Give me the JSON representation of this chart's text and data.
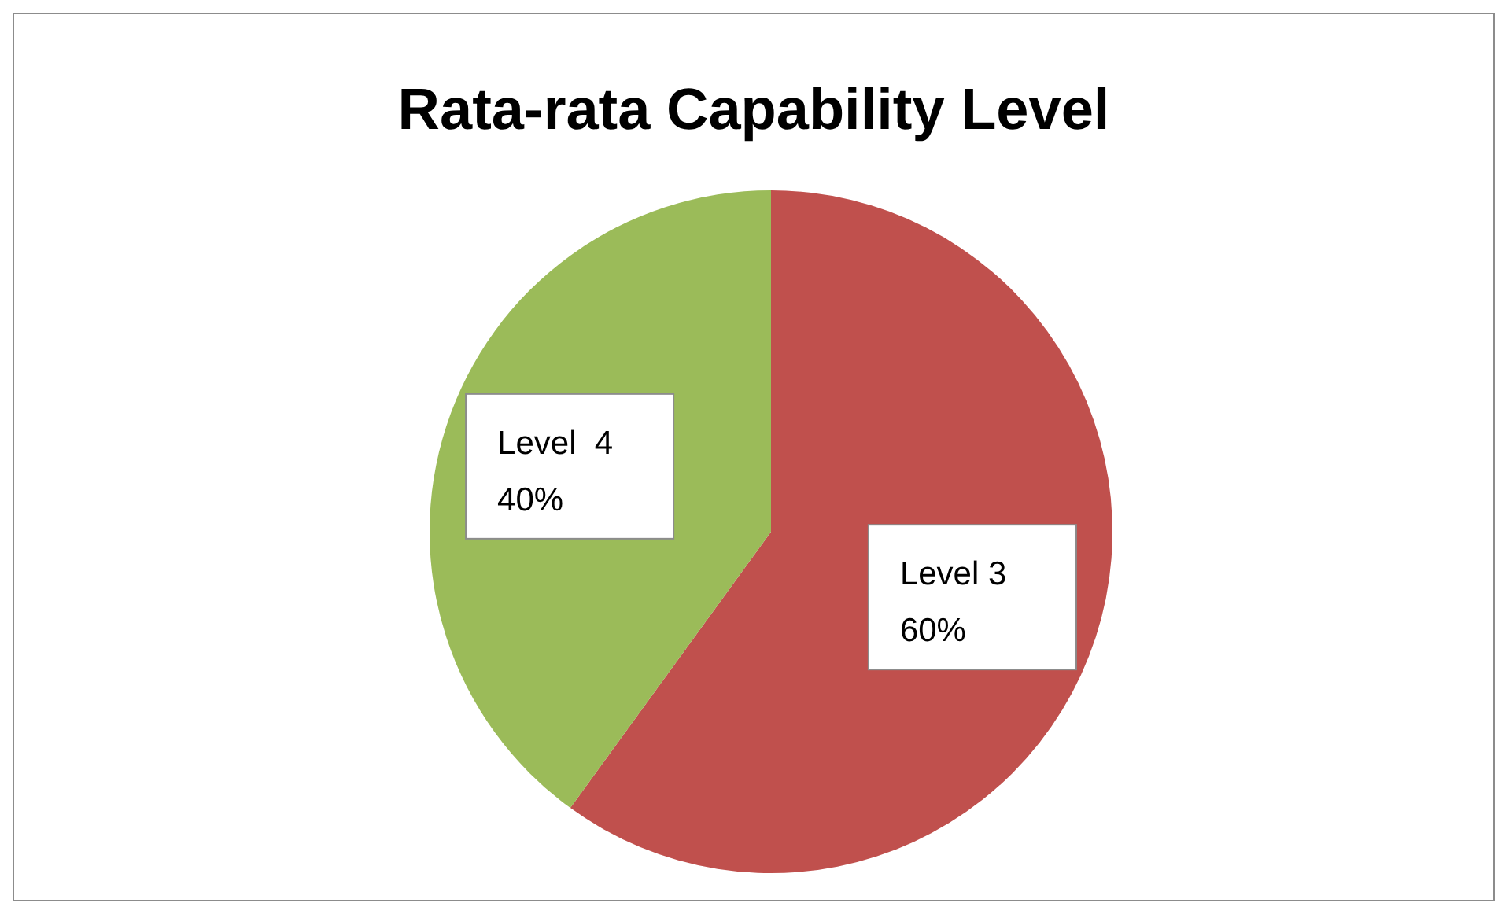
{
  "chart_data": {
    "type": "pie",
    "title": "Rata-rata Capability Level",
    "categories": [
      "Level 3",
      "Level  4"
    ],
    "values": [
      60,
      40
    ],
    "colors": [
      "#c0504d",
      "#9bbb59"
    ],
    "value_labels": [
      "60%",
      "40%"
    ],
    "legend": false
  }
}
